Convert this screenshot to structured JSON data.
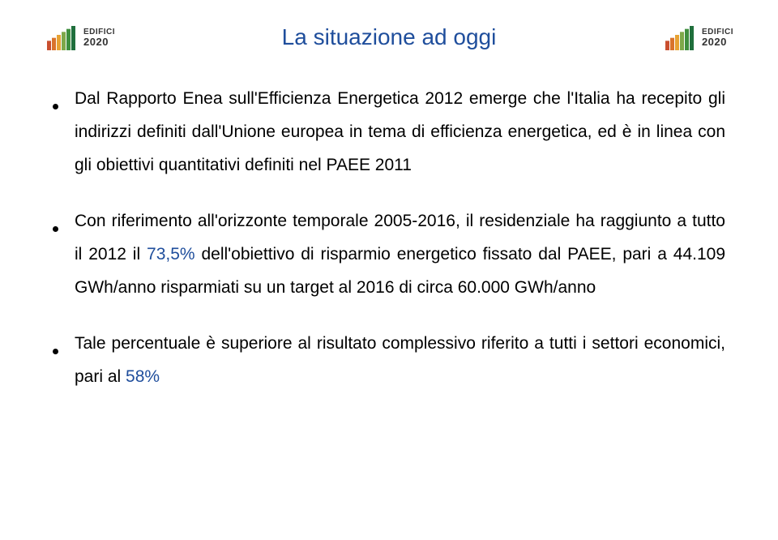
{
  "colors": {
    "title_color": "#1f4e9c",
    "highlight_color": "#1f4e9c",
    "body_text_color": "#000000",
    "background": "#ffffff",
    "bullet_color": "#000000"
  },
  "typography": {
    "title_fontsize": 28,
    "body_fontsize": 21,
    "body_lineheight": 1.95,
    "logo_small_fontsize": 10,
    "logo_year_fontsize": 13
  },
  "logo": {
    "line1": "EDIFICI",
    "line2": "2020",
    "bar_colors": [
      "#c94f2f",
      "#d9732b",
      "#e7a233",
      "#7ea84a",
      "#3f8f3f",
      "#1f6f3c"
    ]
  },
  "title": "La situazione ad oggi",
  "bullets": [
    {
      "segments": [
        {
          "t": "Dal Rapporto Enea sull'Efficienza Energetica 2012 emerge che l'Italia ha recepito gli indirizzi definiti dall'Unione europea in tema di efficienza energetica, ed è in linea con gli obiettivi quantitativi definiti nel PAEE 2011",
          "hl": false
        }
      ]
    },
    {
      "segments": [
        {
          "t": "Con riferimento all'orizzonte temporale 2005-2016, il residenziale ha raggiunto a tutto il 2012 il ",
          "hl": false
        },
        {
          "t": "73,5%",
          "hl": true
        },
        {
          "t": " dell'obiettivo di risparmio energetico fissato dal PAEE, pari a 44.109 GWh/anno risparmiati su un target al 2016 di circa 60.000 GWh/anno",
          "hl": false
        }
      ]
    },
    {
      "segments": [
        {
          "t": "Tale percentuale è superiore al risultato complessivo riferito a tutti i settori economici, pari al ",
          "hl": false
        },
        {
          "t": "58%",
          "hl": true
        }
      ]
    }
  ]
}
